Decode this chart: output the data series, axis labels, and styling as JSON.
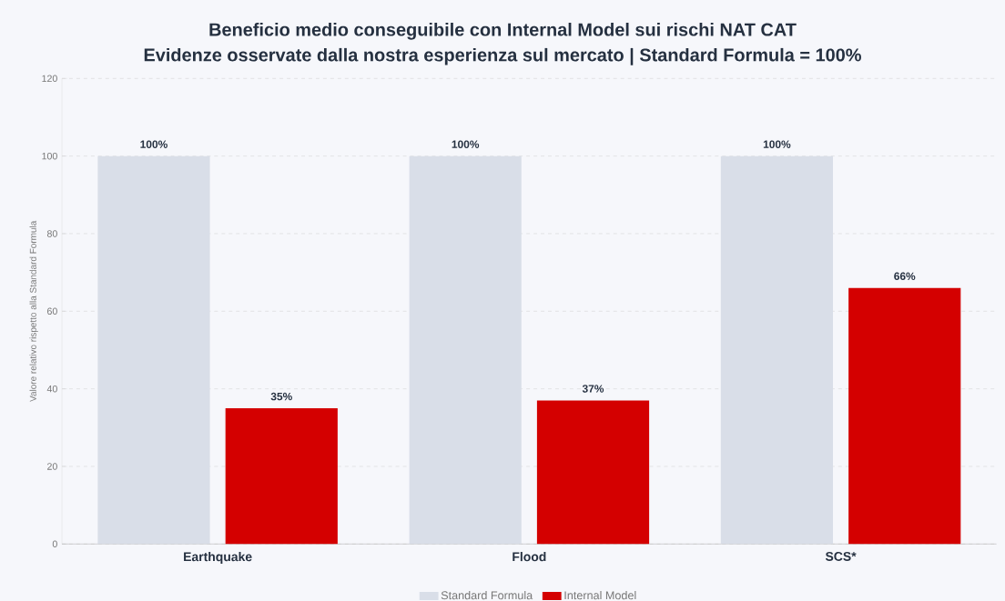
{
  "chart_data": {
    "type": "bar",
    "title": "Beneficio medio conseguibile con Internal Model sui rischi NAT CAT",
    "subtitle": "Evidenze osservate dalla nostra esperienza sul mercato | Standard Formula = 100%",
    "ylabel": "Valore relativo rispetto alla Standard Formula",
    "categories": [
      "Earthquake",
      "Flood",
      "SCS*"
    ],
    "series": [
      {
        "name": "Standard Formula",
        "color": "#d9dee8",
        "values": [
          100,
          100,
          100
        ],
        "value_labels": [
          "100%",
          "100%",
          "100%"
        ]
      },
      {
        "name": "Internal Model",
        "color": "#d40000",
        "values": [
          35,
          37,
          66
        ],
        "value_labels": [
          "35%",
          "37%",
          "66%"
        ]
      }
    ],
    "ylim": [
      0,
      120
    ],
    "yticks": [
      0,
      20,
      40,
      60,
      80,
      100,
      120
    ],
    "grid": "y",
    "legend": "bottom"
  }
}
